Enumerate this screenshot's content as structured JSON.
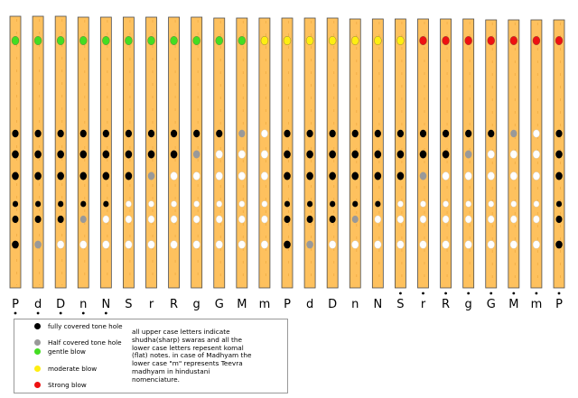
{
  "diagram": {
    "columns": [
      {
        "label": "P",
        "dot_below": true,
        "dot_above": false,
        "blow": "gentle",
        "holes": [
          "full",
          "full",
          "full",
          "full",
          "full",
          "full"
        ]
      },
      {
        "label": "d",
        "dot_below": true,
        "dot_above": false,
        "blow": "gentle",
        "holes": [
          "full",
          "full",
          "full",
          "full",
          "full",
          "half"
        ]
      },
      {
        "label": "D",
        "dot_below": true,
        "dot_above": false,
        "blow": "gentle",
        "holes": [
          "full",
          "full",
          "full",
          "full",
          "full",
          "open"
        ]
      },
      {
        "label": "n",
        "dot_below": true,
        "dot_above": false,
        "blow": "gentle",
        "holes": [
          "full",
          "full",
          "full",
          "full",
          "half",
          "open"
        ]
      },
      {
        "label": "N",
        "dot_below": true,
        "dot_above": false,
        "blow": "gentle",
        "holes": [
          "full",
          "full",
          "full",
          "full",
          "open",
          "open"
        ]
      },
      {
        "label": "S",
        "dot_below": false,
        "dot_above": false,
        "blow": "gentle",
        "holes": [
          "full",
          "full",
          "full",
          "open",
          "open",
          "open"
        ]
      },
      {
        "label": "r",
        "dot_below": false,
        "dot_above": false,
        "blow": "gentle",
        "holes": [
          "full",
          "full",
          "half",
          "open",
          "open",
          "open"
        ]
      },
      {
        "label": "R",
        "dot_below": false,
        "dot_above": false,
        "blow": "gentle",
        "holes": [
          "full",
          "full",
          "open",
          "open",
          "open",
          "open"
        ]
      },
      {
        "label": "g",
        "dot_below": false,
        "dot_above": false,
        "blow": "gentle",
        "holes": [
          "full",
          "half",
          "open",
          "open",
          "open",
          "open"
        ]
      },
      {
        "label": "G",
        "dot_below": false,
        "dot_above": false,
        "blow": "gentle",
        "holes": [
          "full",
          "open",
          "open",
          "open",
          "open",
          "open"
        ]
      },
      {
        "label": "M",
        "dot_below": false,
        "dot_above": false,
        "blow": "gentle",
        "holes": [
          "half",
          "open",
          "open",
          "open",
          "open",
          "open"
        ]
      },
      {
        "label": "m",
        "dot_below": false,
        "dot_above": false,
        "blow": "moderate",
        "holes": [
          "open",
          "open",
          "open",
          "open",
          "open",
          "open"
        ]
      },
      {
        "label": "P",
        "dot_below": false,
        "dot_above": false,
        "blow": "moderate",
        "holes": [
          "full",
          "full",
          "full",
          "full",
          "full",
          "full"
        ]
      },
      {
        "label": "d",
        "dot_below": false,
        "dot_above": false,
        "blow": "moderate",
        "holes": [
          "full",
          "full",
          "full",
          "full",
          "full",
          "half"
        ]
      },
      {
        "label": "D",
        "dot_below": false,
        "dot_above": false,
        "blow": "moderate",
        "holes": [
          "full",
          "full",
          "full",
          "full",
          "full",
          "open"
        ]
      },
      {
        "label": "n",
        "dot_below": false,
        "dot_above": false,
        "blow": "moderate",
        "holes": [
          "full",
          "full",
          "full",
          "full",
          "half",
          "open"
        ]
      },
      {
        "label": "N",
        "dot_below": false,
        "dot_above": false,
        "blow": "moderate",
        "holes": [
          "full",
          "full",
          "full",
          "full",
          "open",
          "open"
        ]
      },
      {
        "label": "S",
        "dot_below": false,
        "dot_above": true,
        "blow": "moderate",
        "holes": [
          "full",
          "full",
          "full",
          "open",
          "open",
          "open"
        ]
      },
      {
        "label": "r",
        "dot_below": false,
        "dot_above": true,
        "blow": "strong",
        "holes": [
          "full",
          "full",
          "half",
          "open",
          "open",
          "open"
        ]
      },
      {
        "label": "R",
        "dot_below": false,
        "dot_above": true,
        "blow": "strong",
        "holes": [
          "full",
          "full",
          "open",
          "open",
          "open",
          "open"
        ]
      },
      {
        "label": "g",
        "dot_below": false,
        "dot_above": true,
        "blow": "strong",
        "holes": [
          "full",
          "half",
          "open",
          "open",
          "open",
          "open"
        ]
      },
      {
        "label": "G",
        "dot_below": false,
        "dot_above": true,
        "blow": "strong",
        "holes": [
          "full",
          "open",
          "open",
          "open",
          "open",
          "open"
        ]
      },
      {
        "label": "M",
        "dot_below": false,
        "dot_above": true,
        "blow": "strong",
        "holes": [
          "half",
          "open",
          "open",
          "open",
          "open",
          "open"
        ]
      },
      {
        "label": "m",
        "dot_below": false,
        "dot_above": true,
        "blow": "strong",
        "holes": [
          "open",
          "open",
          "open",
          "open",
          "open",
          "open"
        ]
      },
      {
        "label": "P",
        "dot_below": false,
        "dot_above": true,
        "blow": "strong",
        "holes": [
          "full",
          "full",
          "full",
          "full",
          "full",
          "full"
        ]
      }
    ]
  },
  "colors": {
    "flute_fill": "#fec15e",
    "flute_stroke": "#4d4d4d",
    "full": "#000000",
    "half": "#999999",
    "open": "#ffffff",
    "gentle": "#44dd22",
    "moderate": "#ffee11",
    "strong": "#ee1111"
  },
  "legend": {
    "items": [
      {
        "label": "fully covered tone hole",
        "color": "#000000"
      },
      {
        "label": "Half covered tone hole",
        "color": "#999999"
      },
      {
        "label": "gentle blow",
        "color": "#44dd22"
      },
      {
        "label": "moderate blow",
        "color": "#ffee11"
      },
      {
        "label": "Strong blow",
        "color": "#ee1111"
      }
    ],
    "note": "all upper case letters indicate shudha(sharp) swaras and all the lower case letters repesent komal (flat) notes. in case of Madhyam the lower case \"m\" represents Teevra madhyam in hindustani nomenciature."
  }
}
